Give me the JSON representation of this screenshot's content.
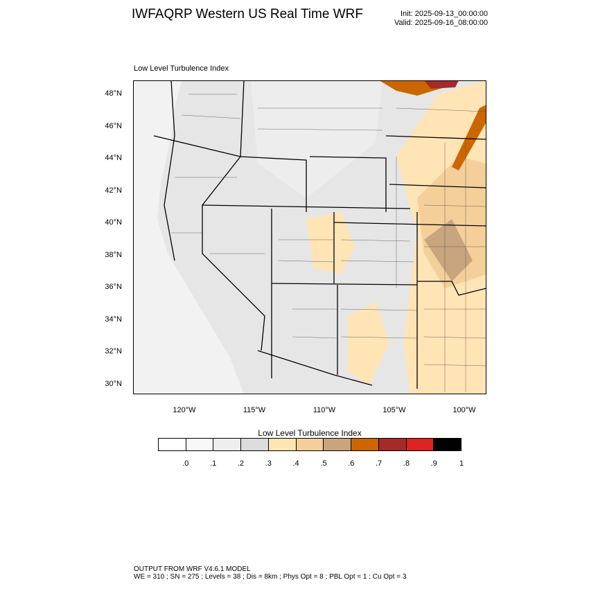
{
  "header": {
    "title": "IWFAQRP Western US Real Time WRF",
    "init": "Init: 2025-09-13_00:00:00",
    "valid": "Valid: 2025-09-16_08:00:00"
  },
  "map": {
    "title": "Low Level Turbulence Index",
    "lat_labels": [
      "48°N",
      "46°N",
      "44°N",
      "42°N",
      "40°N",
      "38°N",
      "36°N",
      "34°N",
      "32°N",
      "30°N"
    ],
    "lon_labels": [
      "120°W",
      "115°W",
      "110°W",
      "105°W",
      "100°W"
    ]
  },
  "colorbar": {
    "title": "Low Level Turbulence Index",
    "colors": [
      "#ffffff",
      "#f8f8f8",
      "#eeeeee",
      "#dcdcdc",
      "#ffe4b5",
      "#f5cf9a",
      "#c9a57f",
      "#cc6600",
      "#a52a2a",
      "#dd2222",
      "#000000"
    ],
    "labels": [
      ".0",
      ".1",
      ".2",
      ".3",
      ".4",
      ".5",
      ".6",
      ".7",
      ".8",
      ".9",
      "1"
    ]
  },
  "footer": {
    "line1": "OUTPUT FROM WRF V4.6.1 MODEL",
    "line2": "WE = 310 ; SN = 275 ; Levels = 38 ; Dis = 8km ; Phys Opt = 8 ; PBL Opt = 1 ; Cu Opt = 3"
  }
}
